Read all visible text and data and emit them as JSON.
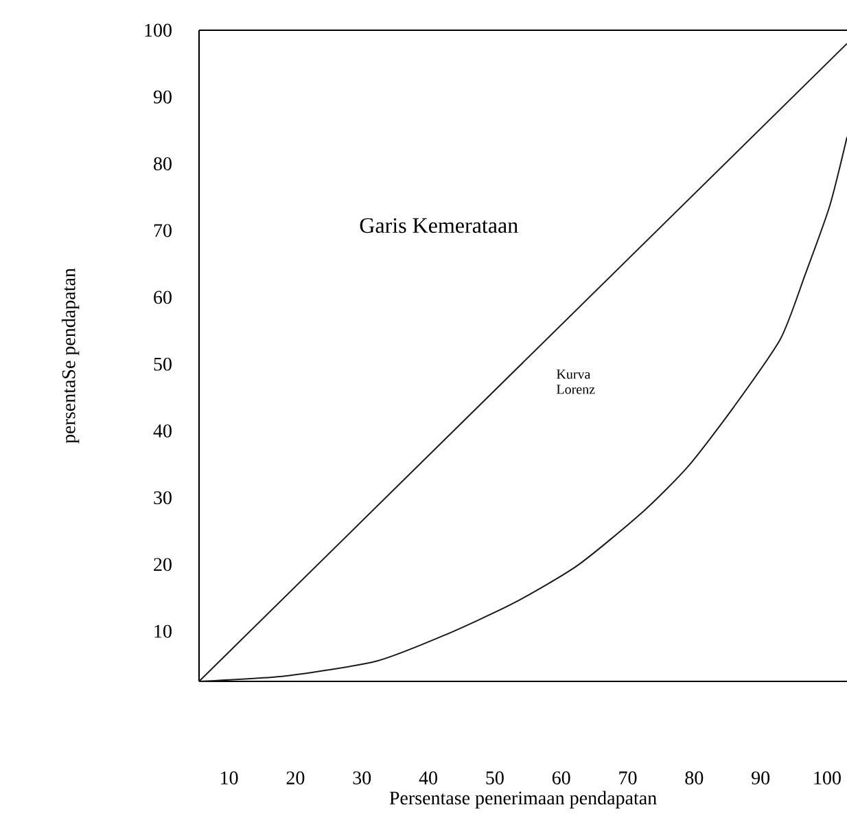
{
  "chart_data": {
    "type": "line",
    "xlabel": "Persentase penerimaan pendapatan",
    "ylabel": "persentaSe pendapatan",
    "annotations": [
      "Garis Kemerataan",
      "Kurva Lorenz"
    ],
    "xlim": [
      5.5,
      103
    ],
    "ylim": [
      2.5,
      100
    ],
    "xticks": [
      10,
      20,
      30,
      40,
      50,
      60,
      70,
      80,
      90,
      100
    ],
    "yticks": [
      10,
      20,
      30,
      40,
      50,
      60,
      70,
      80,
      90,
      100
    ],
    "grid": false,
    "marker": "none",
    "line_style": "solid",
    "series": [
      {
        "color": "#1a1a1a",
        "x": [
          5.5,
          103
        ],
        "values": [
          2.5,
          98
        ]
      },
      {
        "color": "#1a1a1a",
        "x": [
          5.5,
          18.4,
          32.1,
          42.4,
          52.8,
          62.5,
          72.3,
          79.1,
          85.9,
          93,
          96.7,
          100.4,
          103
        ],
        "values": [
          2.5,
          3.3,
          5.5,
          9.4,
          14.2,
          19.9,
          27.9,
          34.7,
          43.5,
          53.8,
          63.4,
          73.7,
          84
        ]
      }
    ]
  }
}
